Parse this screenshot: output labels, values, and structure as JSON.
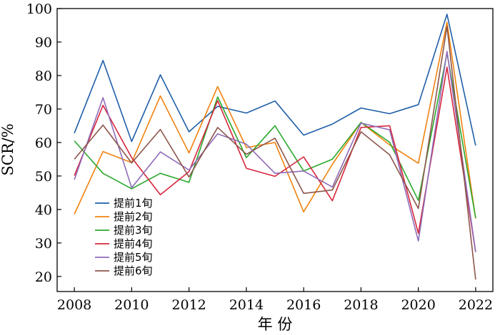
{
  "chart_data": {
    "type": "line",
    "xlabel": "年 份",
    "ylabel": "SCR/%",
    "xlim": [
      2007.4,
      2022.6
    ],
    "ylim": [
      15.5,
      100
    ],
    "x_ticks": [
      2008,
      2010,
      2012,
      2014,
      2016,
      2018,
      2020,
      2022
    ],
    "y_ticks": [
      20,
      30,
      40,
      50,
      60,
      70,
      80,
      90,
      100
    ],
    "legend_position": "lower-left",
    "grid": false,
    "x": [
      2008,
      2009,
      2010,
      2011,
      2012,
      2013,
      2014,
      2015,
      2016,
      2017,
      2018,
      2019,
      2020,
      2021,
      2022
    ],
    "series": [
      {
        "name": "提前1旬",
        "color": "#1f5fa8",
        "values": [
          62.8,
          84.5,
          60.3,
          80.2,
          63.2,
          70.8,
          68.8,
          72.4,
          62.2,
          65.5,
          70.3,
          68.6,
          71.3,
          98.3,
          59.1
        ]
      },
      {
        "name": "提前2旬",
        "color": "#f0820f",
        "values": [
          38.6,
          57.3,
          54.0,
          73.9,
          56.9,
          76.7,
          58.5,
          60.0,
          39.3,
          53.5,
          66.0,
          59.3,
          53.8,
          95.9,
          37.3
        ]
      },
      {
        "name": "提前3旬",
        "color": "#2ca82c",
        "values": [
          60.5,
          50.8,
          46.2,
          50.8,
          48.1,
          73.6,
          55.5,
          65.0,
          51.5,
          55.0,
          66.0,
          60.1,
          42.7,
          86.7,
          37.5
        ]
      },
      {
        "name": "提前4旬",
        "color": "#d7263d",
        "values": [
          50.1,
          71.1,
          55.5,
          44.4,
          51.3,
          72.5,
          52.3,
          49.9,
          55.7,
          42.6,
          64.5,
          65.0,
          32.9,
          82.5,
          27.3
        ]
      },
      {
        "name": "提前5旬",
        "color": "#8e6bb8",
        "values": [
          48.9,
          73.4,
          46.5,
          57.2,
          51.8,
          62.6,
          59.5,
          50.8,
          51.5,
          46.7,
          65.8,
          63.8,
          30.6,
          87.2,
          27.3
        ]
      },
      {
        "name": "提前6旬",
        "color": "#8c564b",
        "values": [
          55.0,
          65.2,
          53.9,
          63.9,
          49.7,
          64.5,
          56.5,
          61.3,
          44.8,
          45.8,
          63.2,
          56.3,
          40.3,
          94.7,
          19.1
        ]
      }
    ]
  }
}
